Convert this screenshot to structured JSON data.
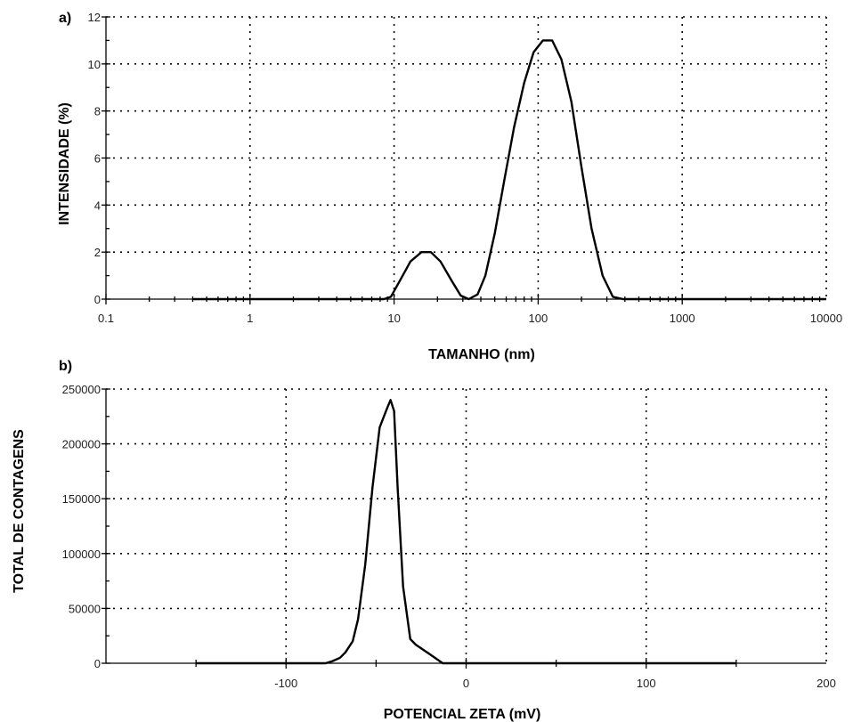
{
  "chart_data": [
    {
      "panel_label": "a)",
      "type": "line",
      "xlabel": "TAMANHO (nm)",
      "ylabel": "INTENSIDADE  (%)",
      "xscale": "log",
      "xlim": [
        0.1,
        10000
      ],
      "ylim": [
        0,
        12
      ],
      "xticks": [
        0.1,
        1,
        10,
        100,
        1000,
        10000
      ],
      "xtick_labels": [
        "0.1",
        "1",
        "10",
        "100",
        "1000",
        "10000"
      ],
      "yticks": [
        0,
        2,
        4,
        6,
        8,
        10,
        12
      ],
      "ytick_labels": [
        "0",
        "2",
        "4",
        "6",
        "8",
        "10",
        "12"
      ],
      "grid": true,
      "series": [
        {
          "x": [
            0.4,
            1,
            3,
            8.5,
            9.5,
            11,
            13,
            15.5,
            18,
            21,
            25,
            29,
            33,
            38,
            43,
            50,
            58,
            68,
            80,
            93,
            108,
            125,
            145,
            170,
            200,
            235,
            280,
            330,
            390,
            500,
            1000,
            3000,
            10000
          ],
          "y": [
            0,
            0,
            0,
            0,
            0.1,
            0.8,
            1.6,
            2.0,
            2.0,
            1.6,
            0.8,
            0.15,
            0,
            0.2,
            1.0,
            2.8,
            5.0,
            7.3,
            9.2,
            10.5,
            11.0,
            11.0,
            10.2,
            8.4,
            5.6,
            3.0,
            1.0,
            0.1,
            0,
            0,
            0,
            0,
            0
          ]
        }
      ]
    },
    {
      "panel_label": "b)",
      "type": "line",
      "xlabel": "POTENCIAL ZETA (mV)",
      "ylabel": "TOTAL DE CONTAGENS",
      "xlim": [
        -200,
        200
      ],
      "ylim": [
        0,
        250000
      ],
      "xticks": [
        -100,
        0,
        100,
        200
      ],
      "xtick_labels": [
        "-100",
        "0",
        "100",
        "200"
      ],
      "yticks": [
        0,
        50000,
        100000,
        150000,
        200000,
        250000
      ],
      "ytick_labels": [
        "0",
        "50000",
        "100000",
        "150000",
        "200000",
        "250000"
      ],
      "grid": true,
      "series": [
        {
          "x": [
            -150,
            -100,
            -78,
            -74,
            -70,
            -67,
            -63,
            -60,
            -56,
            -52,
            -48,
            -44,
            -42,
            -40,
            -38,
            -35,
            -31,
            -28,
            -20,
            -13,
            0,
            150
          ],
          "y": [
            0,
            0,
            0,
            2000,
            5000,
            10000,
            20000,
            40000,
            90000,
            160000,
            215000,
            232000,
            240000,
            230000,
            160000,
            70000,
            22000,
            17000,
            8000,
            0,
            0,
            0
          ]
        }
      ]
    }
  ]
}
